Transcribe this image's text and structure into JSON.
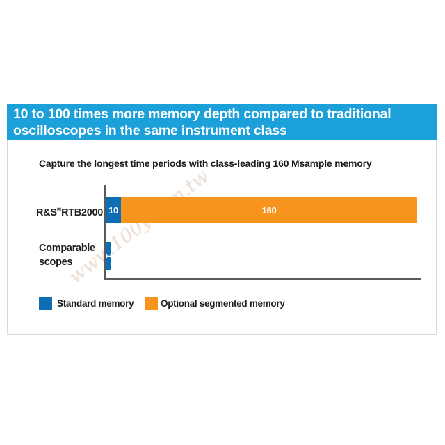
{
  "banner": {
    "line1": "10 to 100 times more memory depth compared to traditional",
    "line2": "oscilloscopes in the same instrument class",
    "background_color": "#1ca0d9",
    "text_color": "#ffffff"
  },
  "subtitle": "Capture the longest time periods with class-leading 160 Msample memory",
  "chart_data": {
    "type": "bar",
    "orientation": "horizontal",
    "title": "Capture the longest time periods with class-leading 160 Msample memory",
    "categories": [
      "R&S®RTB2000",
      "Comparable scopes"
    ],
    "series": [
      {
        "name": "Standard memory",
        "color": "#0e6eb5",
        "values": [
          10,
          1
        ]
      },
      {
        "name": "Optional segmented memory",
        "color": "#f7941d",
        "values": [
          160,
          0
        ]
      }
    ],
    "value_labels": [
      [
        "10",
        "160"
      ],
      [
        "1",
        ""
      ]
    ],
    "unit": "Msample",
    "xlim": [
      0,
      165
    ],
    "grid": false,
    "legend_position": "bottom"
  },
  "labels": {
    "row1": {
      "brand": "R&S",
      "reg": "®",
      "model": "RTB2000",
      "value_standard": "10",
      "value_segmented": "160"
    },
    "row2": {
      "line1": "Comparable",
      "line2": "scopes",
      "value_standard": "1"
    }
  },
  "legend": {
    "items": [
      {
        "label": "Standard memory",
        "color": "#0e6eb5"
      },
      {
        "label": "Optional segmented memory",
        "color": "#f7941d"
      }
    ]
  },
  "watermark": {
    "text": "www.100y.com.tw"
  },
  "colors": {
    "banner_cyan": "#1ca0d9",
    "bar_blue": "#0e6eb5",
    "bar_orange": "#f7941d",
    "axis_gray": "#5a5a5c",
    "panel_border": "#d8d8d8",
    "text_black": "#1d1d1b"
  }
}
